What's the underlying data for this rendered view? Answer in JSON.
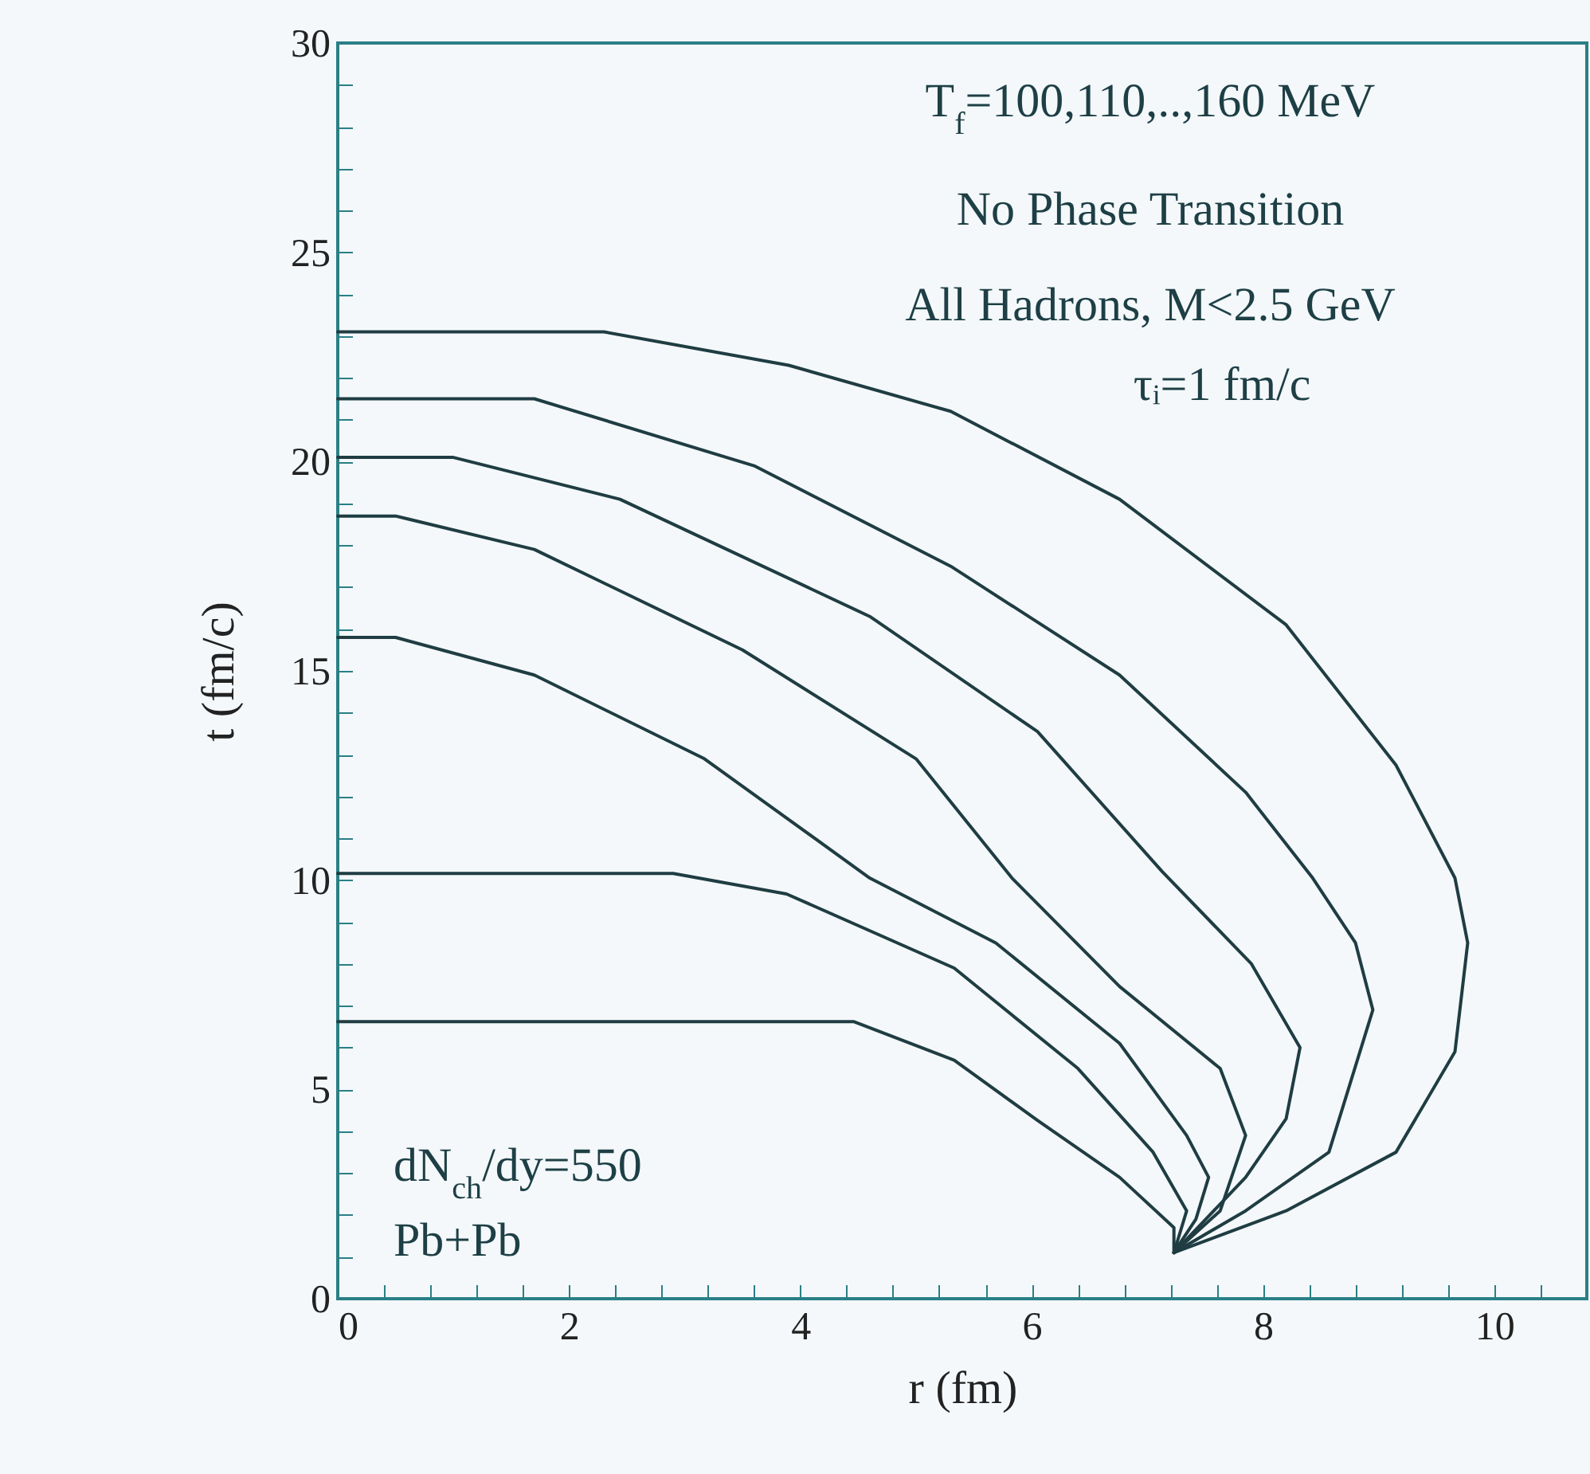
{
  "chart_data": {
    "type": "line",
    "xlabel": "r (fm)",
    "ylabel": "t (fm/c)",
    "xlim": [
      0,
      10.8
    ],
    "ylim": [
      0,
      30
    ],
    "xticks": [
      0,
      {
        "value": 0.4,
        "label": null
      },
      {
        "value": 0.8,
        "label": null
      },
      {
        "value": 1.2,
        "label": null
      },
      {
        "value": 1.6,
        "label": null
      },
      2,
      {
        "value": 2.4,
        "label": null
      },
      {
        "value": 2.8,
        "label": null
      },
      {
        "value": 3.2,
        "label": null
      },
      {
        "value": 3.6,
        "label": null
      },
      4,
      {
        "value": 4.4,
        "label": null
      },
      {
        "value": 4.8,
        "label": null
      },
      {
        "value": 5.2,
        "label": null
      },
      {
        "value": 5.6,
        "label": null
      },
      6,
      {
        "value": 6.4,
        "label": null
      },
      {
        "value": 6.8,
        "label": null
      },
      {
        "value": 7.2,
        "label": null
      },
      {
        "value": 7.6,
        "label": null
      },
      8,
      {
        "value": 8.4,
        "label": null
      },
      {
        "value": 8.8,
        "label": null
      },
      {
        "value": 9.2,
        "label": null
      },
      {
        "value": 9.6,
        "label": null
      },
      10,
      {
        "value": 10.4,
        "label": null
      }
    ],
    "yticks": [
      0,
      {
        "value": 1,
        "label": null
      },
      {
        "value": 2,
        "label": null
      },
      {
        "value": 3,
        "label": null
      },
      {
        "value": 4,
        "label": null
      },
      5,
      {
        "value": 6,
        "label": null
      },
      {
        "value": 7,
        "label": null
      },
      {
        "value": 8,
        "label": null
      },
      {
        "value": 9,
        "label": null
      },
      10,
      {
        "value": 11,
        "label": null
      },
      {
        "value": 12,
        "label": null
      },
      {
        "value": 13,
        "label": null
      },
      {
        "value": 14,
        "label": null
      },
      15,
      {
        "value": 16,
        "label": null
      },
      {
        "value": 17,
        "label": null
      },
      {
        "value": 18,
        "label": null
      },
      {
        "value": 19,
        "label": null
      },
      20,
      {
        "value": 21,
        "label": null
      },
      {
        "value": 22,
        "label": null
      },
      {
        "value": 23,
        "label": null
      },
      {
        "value": 24,
        "label": null
      },
      25,
      {
        "value": 26,
        "label": null
      },
      {
        "value": 27,
        "label": null
      },
      {
        "value": 28,
        "label": null
      },
      {
        "value": 29,
        "label": null
      },
      30
    ],
    "grid": false,
    "legend": false,
    "marker": "none",
    "line_style": "solid",
    "annotations": [
      "T$_{f}$=100,110,..,160 MeV",
      "No Phase Transition",
      "All Hadrons, M<2.5 GeV",
      "τᵢ=1 fm/c",
      "dN$_{ch}$/dy=550",
      "Pb+Pb"
    ],
    "series": [
      {
        "color": "#1f3d42",
        "x": [
          0,
          2.3,
          3.9,
          5.3,
          6.76,
          8.2,
          9.15,
          9.66,
          9.77,
          9.66,
          9.15,
          8.2,
          7.23
        ],
        "values": [
          23.1,
          23.1,
          22.3,
          21.2,
          19.1,
          16.1,
          12.75,
          10.05,
          8.5,
          5.9,
          3.5,
          2.1,
          1.1
        ]
      },
      {
        "color": "#1f3d42",
        "x": [
          0,
          1.7,
          3.6,
          5.3,
          6.76,
          7.85,
          8.43,
          8.8,
          8.95,
          8.57,
          7.85,
          7.23
        ],
        "values": [
          21.5,
          21.5,
          19.9,
          17.5,
          14.9,
          12.1,
          10.05,
          8.5,
          6.9,
          3.5,
          2.1,
          1.1
        ]
      },
      {
        "color": "#1f3d42",
        "x": [
          0,
          1.0,
          2.44,
          4.6,
          6.05,
          7.13,
          7.9,
          8.32,
          8.2,
          7.85,
          7.23
        ],
        "values": [
          20.1,
          20.1,
          19.1,
          16.3,
          13.55,
          10.2,
          8.0,
          6.0,
          4.3,
          2.9,
          1.1
        ]
      },
      {
        "color": "#1f3d42",
        "x": [
          0,
          0.5,
          1.7,
          3.5,
          5.0,
          5.83,
          6.76,
          7.63,
          7.85,
          7.63,
          7.23
        ],
        "values": [
          18.7,
          18.7,
          17.9,
          15.5,
          12.9,
          10.05,
          7.46,
          5.5,
          3.9,
          2.1,
          1.1
        ]
      },
      {
        "color": "#1f3d42",
        "x": [
          0,
          0.5,
          1.7,
          3.17,
          4.6,
          5.69,
          6.76,
          7.34,
          7.53,
          7.42,
          7.23
        ],
        "values": [
          15.8,
          15.8,
          14.9,
          12.9,
          10.05,
          8.5,
          6.1,
          3.9,
          2.9,
          1.9,
          1.1
        ]
      },
      {
        "color": "#1f3d42",
        "x": [
          0,
          2.9,
          3.88,
          5.33,
          6.4,
          7.05,
          7.34,
          7.23
        ],
        "values": [
          10.16,
          10.16,
          9.67,
          7.9,
          5.5,
          3.5,
          2.1,
          1.1
        ]
      },
      {
        "color": "#1f3d42",
        "x": [
          0,
          4.46,
          5.33,
          6.05,
          6.76,
          7.23,
          7.23
        ],
        "values": [
          6.62,
          6.62,
          5.7,
          4.26,
          2.9,
          1.7,
          1.1
        ]
      }
    ]
  }
}
